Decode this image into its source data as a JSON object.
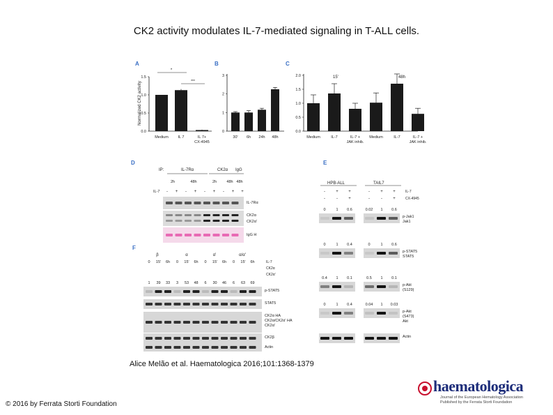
{
  "slide": {
    "title": "CK2 activity modulates IL-7-mediated signaling in T-ALL cells.",
    "citation": "Alice Melão et al. Haematologica 2016;101:1368-1379",
    "copyright": "© 2016 by Ferrata Storti Foundation",
    "logo_text": "haematologica",
    "logo_subtext_1": "Journal of the European Hematology Association",
    "logo_subtext_2": "Published by the Ferrata Storti Foundation"
  },
  "colors": {
    "bar": "#1a1a1a",
    "blot": "#555555",
    "blot_bg": "#d7d7d7",
    "igg_band": "#e86ab4",
    "panel_label": "#3a6fc4"
  },
  "chart_data": [
    {
      "type": "bar",
      "panel": "A",
      "ylabel": "Normalized CK2 activity",
      "categories": [
        "Medium",
        "IL 7",
        "IL 7+\nCX-4945"
      ],
      "values": [
        1.0,
        1.13,
        0.03
      ],
      "errors": [
        0,
        0.03,
        0.01
      ],
      "ylim": [
        0,
        1.5
      ],
      "yticks": [
        "0.0",
        "0.5",
        "1.0",
        "1.5"
      ],
      "significance": [
        "*",
        "***"
      ]
    },
    {
      "type": "bar",
      "panel": "B",
      "categories": [
        "30'",
        "6h",
        "24h",
        "48h"
      ],
      "values": [
        1.0,
        1.0,
        1.15,
        2.25
      ],
      "errors": [
        0.05,
        0.1,
        0.08,
        0.1
      ],
      "ylim": [
        0,
        3
      ],
      "yticks": [
        "0",
        "1",
        "2",
        "3"
      ]
    },
    {
      "type": "bar",
      "panel": "C",
      "groups": [
        "15'",
        "48h"
      ],
      "categories": [
        "Medium",
        "IL-7",
        "IL-7 +\nJAK inhib."
      ],
      "series_values": [
        [
          1.0,
          1.35,
          0.8
        ],
        [
          1.02,
          1.7,
          0.62
        ]
      ],
      "errors": [
        [
          0.3,
          0.35,
          0.2
        ],
        [
          0.35,
          0.35,
          0.2
        ]
      ],
      "ylim": [
        0,
        2.0
      ],
      "yticks": [
        "0.0",
        "0.5",
        "1.0",
        "1.5",
        "2.0"
      ]
    }
  ],
  "panel_d": {
    "ip_label": "IP:",
    "ip_targets": [
      "IL-7Rα",
      "CK2α",
      "IgG"
    ],
    "times": [
      "2h",
      "48h",
      "2h",
      "48h",
      "48h"
    ],
    "il7_row_label": "IL-7",
    "il7_signs": [
      "-",
      "+",
      "-",
      "+",
      "-",
      "+",
      "-",
      "+",
      "+"
    ],
    "blots": [
      "IL-7Rα",
      "CK2α",
      "CK2α'",
      "IgG H"
    ]
  },
  "panel_e": {
    "cell_lines": [
      "HPB-ALL",
      "TAIL7"
    ],
    "il7_row": {
      "label": "IL-7",
      "signs": [
        "-",
        "+",
        "+",
        "-",
        "+",
        "+"
      ]
    },
    "cx_row": {
      "label": "CX-4945",
      "signs": [
        "-",
        "-",
        "+",
        "-",
        "-",
        "+"
      ]
    },
    "blots": [
      {
        "values": [
          "0",
          "1",
          "0.6",
          "0.02",
          "1",
          "0.6"
        ],
        "labels": [
          "p-Jak1",
          "Jak1"
        ]
      },
      {
        "values": [
          "0",
          "1",
          "0.4",
          "0",
          "1",
          "0.6"
        ],
        "labels": [
          "p-STAT5",
          "STAT5"
        ]
      },
      {
        "values": [
          "0.4",
          "1",
          "0.1",
          "0.5",
          "1",
          "0.1"
        ],
        "labels": [
          "p-Akt",
          "(S129)"
        ]
      },
      {
        "values": [
          "0",
          "1",
          "0.4",
          "0.04",
          "1",
          "0.03"
        ],
        "labels": [
          "p-Akt",
          "(S473)",
          "Akt"
        ]
      },
      {
        "values": [],
        "labels": [
          "Actin"
        ]
      }
    ]
  },
  "panel_f": {
    "groups": [
      "β",
      "α",
      "α'",
      "α/α'"
    ],
    "times": [
      "0",
      "15'",
      "6h",
      "0",
      "15'",
      "6h",
      "0",
      "15'",
      "6h",
      "0",
      "15'",
      "6h"
    ],
    "time_label": "IL-7",
    "row2_label": "CK2α",
    "row3_label": "CK2α'",
    "quant": [
      "1",
      "39",
      "33",
      "3",
      "53",
      "48",
      "6",
      "30",
      "46",
      "6",
      "63",
      "69"
    ],
    "blots": [
      "p-STAT5",
      "STAT5",
      "CK2α HA",
      "CK2α/CK2α' HA",
      "CK2α'",
      "CK2β",
      "Actin"
    ]
  }
}
